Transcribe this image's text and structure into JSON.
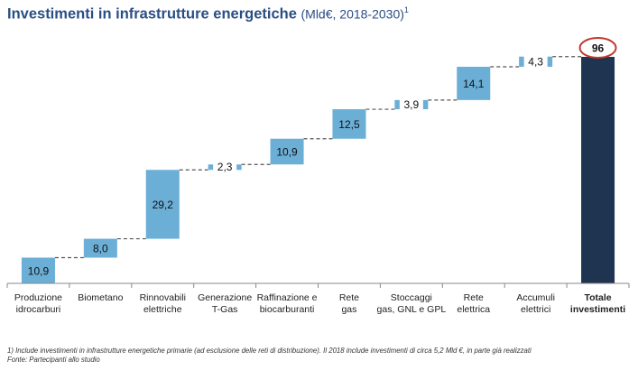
{
  "title": {
    "main": "Investimenti in infrastrutture energetiche",
    "unit": "(Mld€, 2018-2030)",
    "sup": "1"
  },
  "chart_data": {
    "type": "bar",
    "subtype": "waterfall",
    "categories": [
      [
        "Produzione",
        "idrocarburi"
      ],
      [
        "Biometano"
      ],
      [
        "Rinnovabili",
        "elettriche"
      ],
      [
        "Generazione",
        "T-Gas"
      ],
      [
        "Raffinazione e",
        "biocarburanti"
      ],
      [
        "Rete",
        "gas"
      ],
      [
        "Stoccaggi",
        "gas, GNL e GPL"
      ],
      [
        "Rete",
        "elettrica"
      ],
      [
        "Accumuli",
        "elettrici"
      ],
      [
        "Totale",
        "investimenti"
      ]
    ],
    "values": [
      10.9,
      8.0,
      29.2,
      2.3,
      10.9,
      12.5,
      3.9,
      14.1,
      4.3,
      96
    ],
    "labels": [
      "10,9",
      "8,0",
      "29,2",
      "2,3",
      "10,9",
      "12,5",
      "3,9",
      "14,1",
      "4,3",
      "96"
    ],
    "total_index": 9,
    "colors": {
      "increment": "#6baed6",
      "total": "#1f3450",
      "connector": "#555555",
      "highlight": "#c0392b"
    },
    "ylim": [
      0,
      96
    ]
  },
  "footnote": {
    "line1": "1) Include investimenti in infrastrutture energetiche primarie (ad esclusione delle reti di distribuzione). Il 2018 include investimenti di circa  5,2 Mld €, in parte già realizzati",
    "line2": "Fonte: Partecipanti allo studio"
  }
}
